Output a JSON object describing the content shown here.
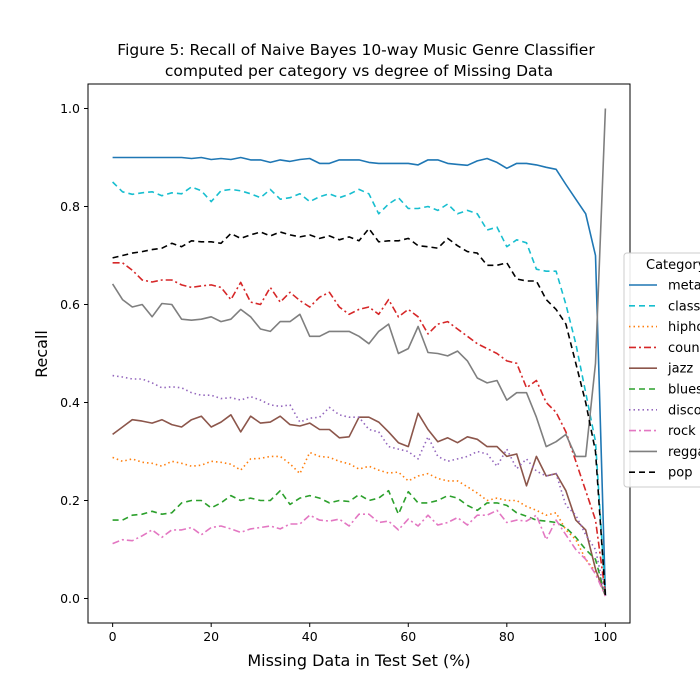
{
  "chart_data": {
    "type": "line",
    "title": "Figure 5: Recall of Naive Bayes 10-way Music Genre Classifier",
    "subtitle": "computed per category vs degree of Missing Data",
    "xlabel": "Missing Data in Test Set (%)",
    "ylabel": "Recall",
    "xlim": [
      -5,
      105
    ],
    "ylim": [
      -0.05,
      1.05
    ],
    "xticks": [
      0,
      20,
      40,
      60,
      80,
      100
    ],
    "yticks": [
      0.0,
      0.2,
      0.4,
      0.6,
      0.8,
      1.0
    ],
    "xtick_labels": [
      "0",
      "20",
      "40",
      "60",
      "80",
      "100"
    ],
    "ytick_labels": [
      "0.0",
      "0.2",
      "0.4",
      "0.6",
      "0.8",
      "1.0"
    ],
    "grid": false,
    "legend_position": "right, outside",
    "legend_title": "Category",
    "x": [
      0,
      2,
      4,
      6,
      8,
      10,
      12,
      14,
      16,
      18,
      20,
      22,
      24,
      26,
      28,
      30,
      32,
      34,
      36,
      38,
      40,
      42,
      44,
      46,
      48,
      50,
      52,
      54,
      56,
      58,
      60,
      62,
      64,
      66,
      68,
      70,
      72,
      74,
      76,
      78,
      80,
      82,
      84,
      86,
      88,
      90,
      92,
      94,
      96,
      98,
      100
    ],
    "series": [
      {
        "name": "metal",
        "color": "#1f77b4",
        "dash": "solid",
        "values": [
          0.9,
          0.9,
          0.9,
          0.9,
          0.9,
          0.9,
          0.9,
          0.9,
          0.898,
          0.9,
          0.896,
          0.898,
          0.896,
          0.9,
          0.895,
          0.895,
          0.89,
          0.895,
          0.892,
          0.896,
          0.898,
          0.888,
          0.888,
          0.895,
          0.895,
          0.895,
          0.89,
          0.888,
          0.888,
          0.888,
          0.888,
          0.885,
          0.895,
          0.895,
          0.888,
          0.886,
          0.884,
          0.893,
          0.898,
          0.89,
          0.878,
          0.888,
          0.888,
          0.885,
          0.88,
          0.876,
          0.845,
          0.815,
          0.785,
          0.7,
          0.005
        ]
      },
      {
        "name": "classical",
        "color": "#17becf",
        "dash": "6,4",
        "values": [
          0.85,
          0.83,
          0.825,
          0.828,
          0.83,
          0.822,
          0.828,
          0.826,
          0.84,
          0.832,
          0.81,
          0.832,
          0.835,
          0.832,
          0.826,
          0.818,
          0.835,
          0.815,
          0.818,
          0.826,
          0.81,
          0.82,
          0.826,
          0.818,
          0.825,
          0.835,
          0.826,
          0.785,
          0.805,
          0.818,
          0.796,
          0.796,
          0.8,
          0.792,
          0.805,
          0.785,
          0.792,
          0.785,
          0.752,
          0.758,
          0.718,
          0.732,
          0.726,
          0.672,
          0.668,
          0.668,
          0.6,
          0.52,
          0.42,
          0.32,
          0.01
        ]
      },
      {
        "name": "hiphop",
        "color": "#ff7f0e",
        "dash": "1.5,3",
        "values": [
          0.288,
          0.28,
          0.285,
          0.278,
          0.276,
          0.27,
          0.28,
          0.276,
          0.27,
          0.272,
          0.28,
          0.278,
          0.274,
          0.262,
          0.285,
          0.286,
          0.29,
          0.29,
          0.275,
          0.255,
          0.298,
          0.29,
          0.288,
          0.28,
          0.275,
          0.264,
          0.27,
          0.262,
          0.256,
          0.258,
          0.24,
          0.25,
          0.255,
          0.245,
          0.24,
          0.24,
          0.228,
          0.215,
          0.2,
          0.205,
          0.2,
          0.2,
          0.188,
          0.18,
          0.17,
          0.175,
          0.14,
          0.12,
          0.08,
          0.055,
          0.01
        ]
      },
      {
        "name": "country",
        "color": "#d62728",
        "dash": "7,3,2,3",
        "values": [
          0.685,
          0.685,
          0.67,
          0.65,
          0.646,
          0.65,
          0.65,
          0.64,
          0.635,
          0.638,
          0.64,
          0.635,
          0.61,
          0.645,
          0.605,
          0.6,
          0.635,
          0.605,
          0.625,
          0.608,
          0.595,
          0.615,
          0.625,
          0.595,
          0.58,
          0.59,
          0.595,
          0.58,
          0.61,
          0.575,
          0.59,
          0.575,
          0.54,
          0.56,
          0.565,
          0.55,
          0.535,
          0.52,
          0.51,
          0.5,
          0.485,
          0.48,
          0.43,
          0.445,
          0.4,
          0.38,
          0.34,
          0.28,
          0.22,
          0.16,
          0.01
        ]
      },
      {
        "name": "jazz",
        "color": "#8c564b",
        "dash": "solid",
        "values": [
          0.335,
          0.35,
          0.365,
          0.362,
          0.358,
          0.365,
          0.355,
          0.35,
          0.365,
          0.372,
          0.35,
          0.36,
          0.375,
          0.34,
          0.372,
          0.358,
          0.36,
          0.372,
          0.355,
          0.352,
          0.358,
          0.345,
          0.345,
          0.328,
          0.33,
          0.37,
          0.37,
          0.36,
          0.34,
          0.318,
          0.31,
          0.378,
          0.345,
          0.32,
          0.328,
          0.318,
          0.33,
          0.325,
          0.31,
          0.31,
          0.29,
          0.295,
          0.23,
          0.29,
          0.25,
          0.255,
          0.22,
          0.16,
          0.14,
          0.06,
          0.005
        ]
      },
      {
        "name": "blues",
        "color": "#2ca02c",
        "dash": "6,4",
        "values": [
          0.16,
          0.16,
          0.17,
          0.172,
          0.178,
          0.172,
          0.175,
          0.195,
          0.2,
          0.2,
          0.185,
          0.195,
          0.21,
          0.2,
          0.205,
          0.2,
          0.2,
          0.22,
          0.192,
          0.205,
          0.21,
          0.205,
          0.195,
          0.2,
          0.198,
          0.212,
          0.2,
          0.205,
          0.22,
          0.172,
          0.218,
          0.195,
          0.195,
          0.2,
          0.21,
          0.205,
          0.19,
          0.18,
          0.195,
          0.195,
          0.19,
          0.175,
          0.168,
          0.16,
          0.158,
          0.155,
          0.145,
          0.125,
          0.1,
          0.08,
          0.005
        ]
      },
      {
        "name": "disco",
        "color": "#9467bd",
        "dash": "1.5,3",
        "values": [
          0.455,
          0.452,
          0.448,
          0.448,
          0.44,
          0.43,
          0.432,
          0.43,
          0.42,
          0.415,
          0.415,
          0.408,
          0.41,
          0.405,
          0.412,
          0.405,
          0.395,
          0.392,
          0.395,
          0.36,
          0.368,
          0.37,
          0.39,
          0.375,
          0.37,
          0.37,
          0.345,
          0.34,
          0.31,
          0.305,
          0.3,
          0.285,
          0.33,
          0.29,
          0.28,
          0.285,
          0.29,
          0.3,
          0.295,
          0.27,
          0.305,
          0.265,
          0.285,
          0.26,
          0.25,
          0.255,
          0.19,
          0.17,
          0.13,
          0.1,
          0.005
        ]
      },
      {
        "name": "rock",
        "color": "#e377c2",
        "dash": "7,3,2,3",
        "values": [
          0.112,
          0.12,
          0.118,
          0.128,
          0.14,
          0.125,
          0.14,
          0.14,
          0.145,
          0.13,
          0.145,
          0.148,
          0.142,
          0.135,
          0.142,
          0.145,
          0.148,
          0.142,
          0.152,
          0.152,
          0.17,
          0.16,
          0.158,
          0.162,
          0.148,
          0.172,
          0.172,
          0.155,
          0.158,
          0.14,
          0.162,
          0.148,
          0.17,
          0.15,
          0.155,
          0.165,
          0.15,
          0.17,
          0.17,
          0.18,
          0.155,
          0.16,
          0.158,
          0.17,
          0.12,
          0.16,
          0.13,
          0.1,
          0.08,
          0.05,
          0.005
        ]
      },
      {
        "name": "reggae",
        "color": "#7f7f7f",
        "dash": "solid",
        "values": [
          0.642,
          0.61,
          0.595,
          0.6,
          0.575,
          0.602,
          0.6,
          0.57,
          0.568,
          0.57,
          0.575,
          0.565,
          0.57,
          0.59,
          0.575,
          0.55,
          0.545,
          0.565,
          0.565,
          0.58,
          0.535,
          0.535,
          0.545,
          0.545,
          0.545,
          0.535,
          0.52,
          0.545,
          0.56,
          0.5,
          0.51,
          0.555,
          0.502,
          0.5,
          0.495,
          0.505,
          0.485,
          0.45,
          0.44,
          0.445,
          0.405,
          0.42,
          0.42,
          0.37,
          0.31,
          0.32,
          0.335,
          0.29,
          0.29,
          0.48,
          1.0
        ]
      },
      {
        "name": "pop",
        "color": "#000000",
        "dash": "6,4",
        "values": [
          0.695,
          0.7,
          0.705,
          0.708,
          0.712,
          0.715,
          0.725,
          0.718,
          0.73,
          0.728,
          0.728,
          0.725,
          0.745,
          0.735,
          0.742,
          0.748,
          0.74,
          0.748,
          0.742,
          0.738,
          0.742,
          0.735,
          0.74,
          0.732,
          0.738,
          0.73,
          0.755,
          0.728,
          0.73,
          0.73,
          0.735,
          0.72,
          0.718,
          0.715,
          0.735,
          0.72,
          0.708,
          0.705,
          0.68,
          0.68,
          0.685,
          0.652,
          0.648,
          0.648,
          0.61,
          0.59,
          0.56,
          0.48,
          0.4,
          0.3,
          0.005
        ]
      }
    ]
  }
}
